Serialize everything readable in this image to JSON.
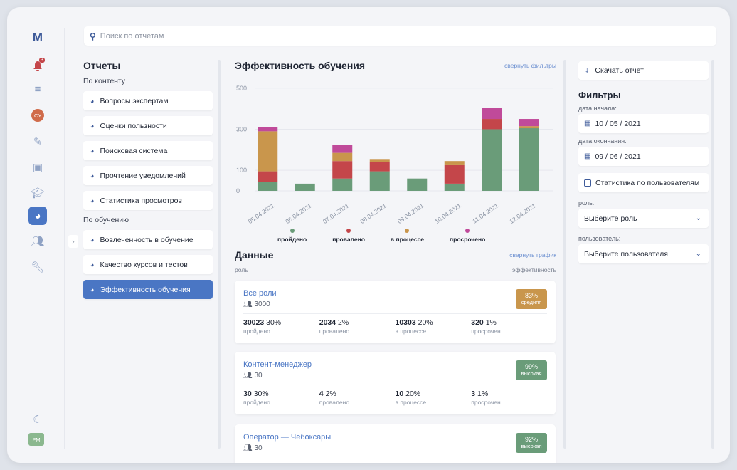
{
  "search": {
    "placeholder": "Поиск по отчетам"
  },
  "nav": {
    "logo": "M",
    "notification_badge": "3",
    "user_initials": "СУ",
    "bottom_initials": "РМ"
  },
  "left": {
    "title": "Отчеты",
    "group1": "По контенту",
    "content_reports": [
      "Вопросы экспертам",
      "Оценки пользности",
      "Поисковая система",
      "Прочтение уведомлений",
      "Статистика просмотров"
    ],
    "group2": "По обучению",
    "learning_reports": [
      "Вовлеченность в обучение",
      "Качество курсов и тестов",
      "Эффективность обучения"
    ]
  },
  "main": {
    "title": "Эффективность обучения",
    "collapse_filters": "свернуть фильтры",
    "data_title": "Данные",
    "collapse_chart": "свернуть график",
    "col_role": "роль",
    "col_efficiency": "эффективность"
  },
  "chart_data": {
    "type": "bar",
    "stacked": true,
    "categories": [
      "05.04.2021",
      "06.04.2021",
      "07.04.2021",
      "08.04.2021",
      "09.04.2021",
      "10.04.2021",
      "11.04.2021",
      "12.04.2021"
    ],
    "series": [
      {
        "name": "пройдено",
        "color": "#6a9c79",
        "values": [
          45,
          35,
          60,
          95,
          60,
          35,
          300,
          305
        ]
      },
      {
        "name": "провалено",
        "color": "#c4464a",
        "values": [
          50,
          0,
          85,
          45,
          0,
          90,
          50,
          0
        ]
      },
      {
        "name": "в процессе",
        "color": "#c9964c",
        "values": [
          195,
          0,
          40,
          15,
          0,
          20,
          0,
          10
        ]
      },
      {
        "name": "просрочено",
        "color": "#c04a9a",
        "values": [
          20,
          0,
          40,
          0,
          0,
          0,
          55,
          35
        ]
      }
    ],
    "yticks": [
      0,
      100,
      300,
      500
    ],
    "ylim": [
      0,
      520
    ]
  },
  "cards": [
    {
      "title": "Все роли",
      "count": "3000",
      "pct": "83%",
      "level": "средняя",
      "color": "#c9964c",
      "stats": [
        {
          "n": "30023",
          "p": "30%",
          "l": "пройдено"
        },
        {
          "n": "2034",
          "p": "2%",
          "l": "провалено"
        },
        {
          "n": "10303",
          "p": "20%",
          "l": "в процессе"
        },
        {
          "n": "320",
          "p": "1%",
          "l": "просрочен"
        }
      ]
    },
    {
      "title": "Контент-менеджер",
      "count": "30",
      "pct": "99%",
      "level": "высокая",
      "color": "#6a9c79",
      "stats": [
        {
          "n": "30",
          "p": "30%",
          "l": "пройдено"
        },
        {
          "n": "4",
          "p": "2%",
          "l": "провалено"
        },
        {
          "n": "10",
          "p": "20%",
          "l": "в процессе"
        },
        {
          "n": "3",
          "p": "1%",
          "l": "просрочен"
        }
      ]
    },
    {
      "title": "Оператор — Чебоксары",
      "count": "30",
      "pct": "92%",
      "level": "высокая",
      "color": "#6a9c79",
      "stats": []
    }
  ],
  "right": {
    "download": "Скачать отчет",
    "filters_title": "Фильтры",
    "start_label": "дата начала:",
    "start_value": "10 / 05 / 2021",
    "end_label": "дата окончания:",
    "end_value": "09 / 06 / 2021",
    "user_stats": "Статистика по пользователям",
    "role_label": "роль:",
    "role_value": "Выберите роль",
    "user_label": "пользователь:",
    "user_value": "Выберите пользователя"
  }
}
